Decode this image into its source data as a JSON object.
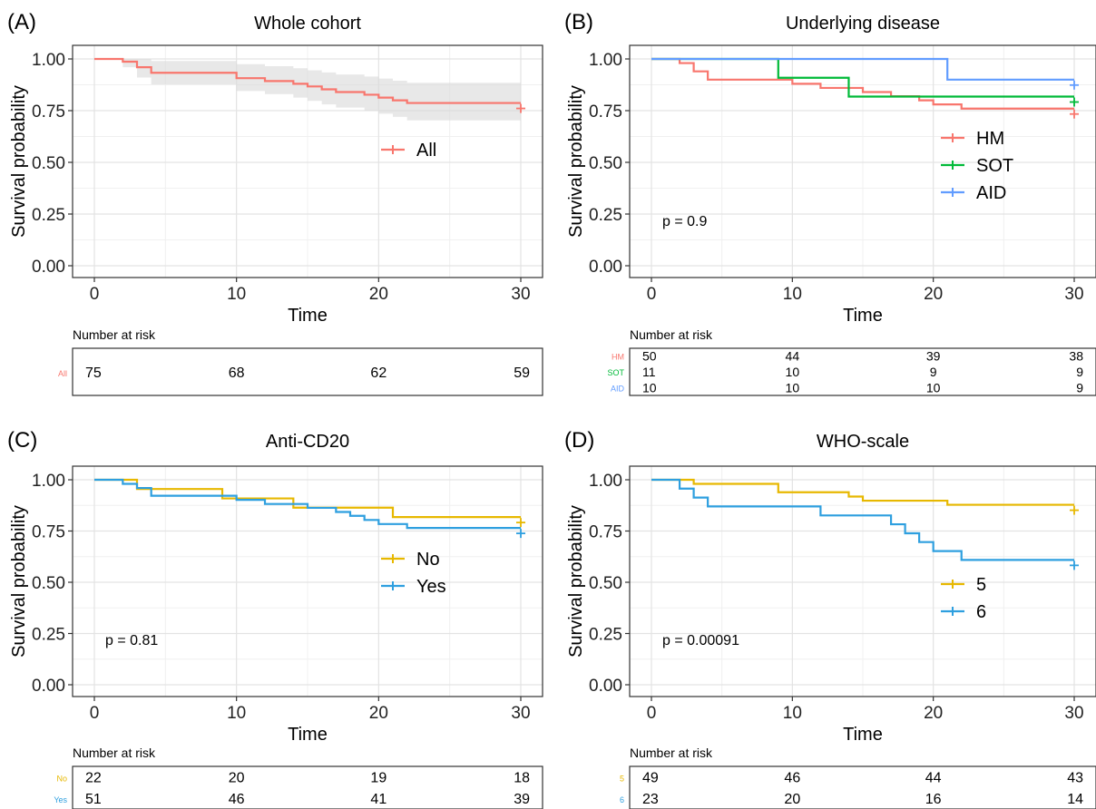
{
  "chart_data": [
    {
      "type": "line",
      "panel_label": "(A)",
      "title": "Whole cohort",
      "xlabel": "Time",
      "ylabel": "Survival probability",
      "xlim": [
        0,
        30
      ],
      "ylim": [
        0,
        1
      ],
      "xticks": [
        "0",
        "10",
        "20",
        "30"
      ],
      "yticks": [
        "0.00",
        "0.25",
        "0.50",
        "0.75",
        "1.00"
      ],
      "legend_position": "center-right",
      "pvalue": "",
      "series": [
        {
          "name": "All",
          "color": "#F8766D",
          "x": [
            0,
            2,
            3,
            4,
            10,
            12,
            14,
            15,
            16,
            17,
            19,
            20,
            21,
            22,
            30
          ],
          "y": [
            1.0,
            0.987,
            0.96,
            0.933,
            0.907,
            0.893,
            0.88,
            0.867,
            0.853,
            0.84,
            0.827,
            0.813,
            0.8,
            0.787,
            0.787
          ],
          "ci_lower": [
            1.0,
            0.96,
            0.91,
            0.877,
            0.845,
            0.83,
            0.813,
            0.797,
            0.78,
            0.765,
            0.75,
            0.735,
            0.72,
            0.703,
            0.703
          ],
          "ci_upper": [
            1.0,
            1.0,
            1.0,
            0.99,
            0.975,
            0.965,
            0.955,
            0.945,
            0.935,
            0.925,
            0.915,
            0.905,
            0.895,
            0.885,
            0.885
          ]
        }
      ],
      "risk_table": {
        "title": "Number at risk",
        "times": [
          0,
          10,
          20,
          30
        ],
        "rows": [
          {
            "label": "All",
            "color": "#F8766D",
            "values": [
              "75",
              "68",
              "62",
              "59"
            ]
          }
        ]
      }
    },
    {
      "type": "line",
      "panel_label": "(B)",
      "title": "Underlying disease",
      "xlabel": "Time",
      "ylabel": "Survival probability",
      "xlim": [
        0,
        30
      ],
      "ylim": [
        0,
        1
      ],
      "xticks": [
        "0",
        "10",
        "20",
        "30"
      ],
      "yticks": [
        "0.00",
        "0.25",
        "0.50",
        "0.75",
        "1.00"
      ],
      "legend_position": "right",
      "pvalue": "p = 0.9",
      "series": [
        {
          "name": "HM",
          "color": "#F8766D",
          "x": [
            0,
            2,
            3,
            4,
            10,
            12,
            15,
            17,
            19,
            20,
            22,
            30
          ],
          "y": [
            1.0,
            0.98,
            0.94,
            0.9,
            0.88,
            0.86,
            0.84,
            0.82,
            0.8,
            0.78,
            0.76,
            0.76
          ]
        },
        {
          "name": "SOT",
          "color": "#00BA38",
          "x": [
            0,
            9,
            14,
            30
          ],
          "y": [
            1.0,
            0.909,
            0.818,
            0.818
          ]
        },
        {
          "name": "AID",
          "color": "#619CFF",
          "x": [
            0,
            21,
            30
          ],
          "y": [
            1.0,
            0.9,
            0.9
          ]
        }
      ],
      "risk_table": {
        "title": "Number at risk",
        "times": [
          0,
          10,
          20,
          30
        ],
        "rows": [
          {
            "label": "HM",
            "color": "#F8766D",
            "values": [
              "50",
              "44",
              "39",
              "38"
            ]
          },
          {
            "label": "SOT",
            "color": "#00BA38",
            "values": [
              "11",
              "10",
              "9",
              "9"
            ]
          },
          {
            "label": "AID",
            "color": "#619CFF",
            "values": [
              "10",
              "10",
              "10",
              "9"
            ]
          }
        ]
      }
    },
    {
      "type": "line",
      "panel_label": "(C)",
      "title": "Anti-CD20",
      "xlabel": "Time",
      "ylabel": "Survival probability",
      "xlim": [
        0,
        30
      ],
      "ylim": [
        0,
        1
      ],
      "xticks": [
        "0",
        "10",
        "20",
        "30"
      ],
      "yticks": [
        "0.00",
        "0.25",
        "0.50",
        "0.75",
        "1.00"
      ],
      "legend_position": "center-right",
      "pvalue": "p = 0.81",
      "series": [
        {
          "name": "No",
          "color": "#E7B800",
          "x": [
            0,
            3,
            4,
            9,
            14,
            17,
            21,
            30
          ],
          "y": [
            1.0,
            0.955,
            0.955,
            0.909,
            0.864,
            0.864,
            0.818,
            0.818
          ]
        },
        {
          "name": "Yes",
          "color": "#2E9FDF",
          "x": [
            0,
            2,
            3,
            4,
            10,
            12,
            15,
            17,
            18,
            19,
            20,
            22,
            30
          ],
          "y": [
            1.0,
            0.98,
            0.96,
            0.922,
            0.902,
            0.882,
            0.863,
            0.843,
            0.824,
            0.804,
            0.784,
            0.765,
            0.765
          ]
        }
      ],
      "risk_table": {
        "title": "Number at risk",
        "times": [
          0,
          10,
          20,
          30
        ],
        "rows": [
          {
            "label": "No",
            "color": "#E7B800",
            "values": [
              "22",
              "20",
              "19",
              "18"
            ]
          },
          {
            "label": "Yes",
            "color": "#2E9FDF",
            "values": [
              "51",
              "46",
              "41",
              "39"
            ]
          }
        ]
      }
    },
    {
      "type": "line",
      "panel_label": "(D)",
      "title": "WHO-scale",
      "xlabel": "Time",
      "ylabel": "Survival probability",
      "xlim": [
        0,
        30
      ],
      "ylim": [
        0,
        1
      ],
      "xticks": [
        "0",
        "10",
        "20",
        "30"
      ],
      "yticks": [
        "0.00",
        "0.25",
        "0.50",
        "0.75",
        "1.00"
      ],
      "legend_position": "center-right",
      "pvalue": "p = 0.00091",
      "series": [
        {
          "name": "5",
          "color": "#E7B800",
          "x": [
            0,
            3,
            9,
            14,
            15,
            21,
            30
          ],
          "y": [
            1.0,
            0.98,
            0.939,
            0.918,
            0.898,
            0.878,
            0.878
          ]
        },
        {
          "name": "6",
          "color": "#2E9FDF",
          "x": [
            0,
            2,
            3,
            4,
            12,
            17,
            18,
            19,
            20,
            22,
            30
          ],
          "y": [
            1.0,
            0.957,
            0.913,
            0.87,
            0.826,
            0.783,
            0.739,
            0.696,
            0.652,
            0.609,
            0.609
          ]
        }
      ],
      "risk_table": {
        "title": "Number at risk",
        "times": [
          0,
          10,
          20,
          30
        ],
        "rows": [
          {
            "label": "5",
            "color": "#E7B800",
            "values": [
              "49",
              "46",
              "44",
              "43"
            ]
          },
          {
            "label": "6",
            "color": "#2E9FDF",
            "values": [
              "23",
              "20",
              "16",
              "14"
            ]
          }
        ]
      }
    }
  ]
}
